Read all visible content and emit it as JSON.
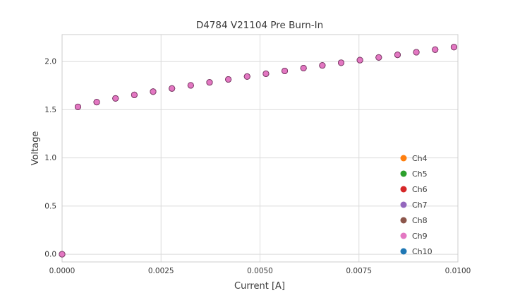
{
  "chart_data": {
    "type": "scatter",
    "title": "D4784 V21104 Pre Burn-In",
    "xlabel": "Current [A]",
    "ylabel": "Voltage",
    "xlim": [
      0,
      0.01
    ],
    "ylim": [
      -0.08,
      2.28
    ],
    "xticks": [
      0,
      0.0025,
      0.005,
      0.0075,
      0.01
    ],
    "xtick_labels": [
      "0.0000",
      "0.0025",
      "0.0050",
      "0.0075",
      "0.0100"
    ],
    "yticks": [
      0,
      0.5,
      1.0,
      1.5,
      2.0
    ],
    "ytick_labels": [
      "0.0",
      "0.5",
      "1.0",
      "1.5",
      "2.0"
    ],
    "grid": true,
    "grid_color": "#dcdcdc",
    "border_color": "#cccccc",
    "legend_position": "lower right",
    "note": "All channel series overlap on identical I-V points; Ch9 (pink) is drawn on top",
    "top_series": "Ch9",
    "x": [
      0.0,
      0.0004,
      0.000875,
      0.00135,
      0.001825,
      0.0023,
      0.002775,
      0.00325,
      0.003725,
      0.0042,
      0.004675,
      0.00515,
      0.005625,
      0.0061,
      0.006575,
      0.00705,
      0.007525,
      0.008,
      0.008475,
      0.00895,
      0.009425,
      0.0099
    ],
    "y": [
      0.0,
      1.53,
      1.579,
      1.618,
      1.654,
      1.688,
      1.721,
      1.753,
      1.784,
      1.815,
      1.845,
      1.874,
      1.903,
      1.932,
      1.96,
      1.988,
      2.015,
      2.043,
      2.07,
      2.097,
      2.124,
      2.15
    ],
    "series": [
      {
        "name": "Ch4",
        "color": "#ff7f0e"
      },
      {
        "name": "Ch5",
        "color": "#2ca02c"
      },
      {
        "name": "Ch6",
        "color": "#d62728"
      },
      {
        "name": "Ch7",
        "color": "#9467bd"
      },
      {
        "name": "Ch8",
        "color": "#8c564b"
      },
      {
        "name": "Ch9",
        "color": "#e377c2"
      },
      {
        "name": "Ch10",
        "color": "#1f77b4"
      }
    ]
  }
}
